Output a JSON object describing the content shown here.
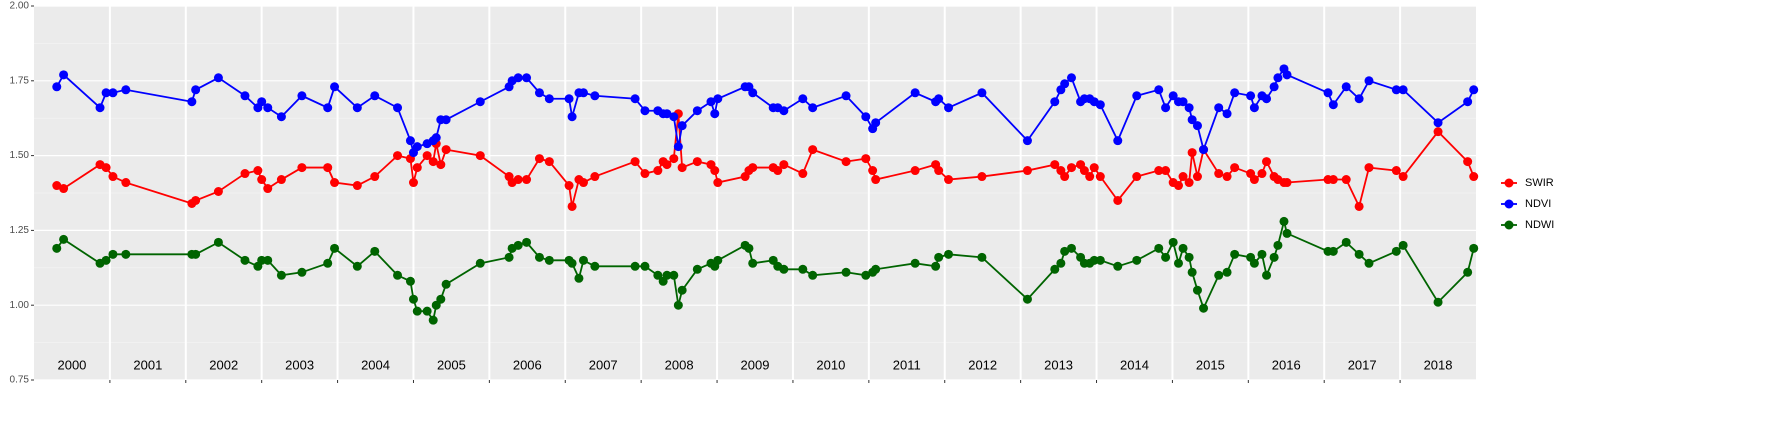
{
  "chart_data": {
    "type": "line",
    "x": [
      2000.3,
      2000.39,
      2000.87,
      2000.95,
      2001.04,
      2001.21,
      2002.08,
      2002.13,
      2002.43,
      2002.78,
      2002.95,
      2003.0,
      2003.08,
      2003.26,
      2003.53,
      2003.87,
      2003.96,
      2004.26,
      2004.49,
      2004.79,
      2004.96,
      2005.0,
      2005.05,
      2005.18,
      2005.26,
      2005.3,
      2005.36,
      2005.43,
      2005.88,
      2006.26,
      2006.3,
      2006.38,
      2006.49,
      2006.66,
      2006.79,
      2007.05,
      2007.09,
      2007.18,
      2007.24,
      2007.39,
      2007.92,
      2008.05,
      2008.22,
      2008.29,
      2008.34,
      2008.43,
      2008.49,
      2008.54,
      2008.74,
      2008.92,
      2008.97,
      2009.01,
      2009.37,
      2009.42,
      2009.47,
      2009.74,
      2009.8,
      2009.88,
      2010.13,
      2010.26,
      2010.7,
      2010.96,
      2011.05,
      2011.09,
      2011.61,
      2011.88,
      2011.92,
      2012.05,
      2012.49,
      2013.09,
      2013.45,
      2013.53,
      2013.58,
      2013.67,
      2013.79,
      2013.84,
      2013.91,
      2013.97,
      2014.05,
      2014.28,
      2014.53,
      2014.82,
      2014.91,
      2015.01,
      2015.08,
      2015.14,
      2015.22,
      2015.26,
      2015.33,
      2015.41,
      2015.61,
      2015.72,
      2015.82,
      2016.03,
      2016.08,
      2016.18,
      2016.24,
      2016.34,
      2016.39,
      2016.47,
      2016.51,
      2017.05,
      2017.12,
      2017.29,
      2017.46,
      2017.59,
      2017.95,
      2018.04,
      2018.5,
      2018.89,
      2018.97
    ],
    "series": [
      {
        "name": "SWIR",
        "color": "#ff0000",
        "values": [
          1.4,
          1.39,
          1.47,
          1.46,
          1.43,
          1.41,
          1.34,
          1.35,
          1.38,
          1.44,
          1.45,
          1.42,
          1.39,
          1.42,
          1.46,
          1.46,
          1.41,
          1.4,
          1.43,
          1.5,
          1.49,
          1.41,
          1.46,
          1.5,
          1.48,
          1.54,
          1.47,
          1.52,
          1.5,
          1.43,
          1.41,
          1.42,
          1.42,
          1.49,
          1.48,
          1.4,
          1.33,
          1.42,
          1.41,
          1.43,
          1.48,
          1.44,
          1.45,
          1.48,
          1.47,
          1.49,
          1.64,
          1.46,
          1.48,
          1.47,
          1.45,
          1.41,
          1.43,
          1.45,
          1.46,
          1.46,
          1.45,
          1.47,
          1.44,
          1.52,
          1.48,
          1.49,
          1.45,
          1.42,
          1.45,
          1.47,
          1.45,
          1.42,
          1.43,
          1.45,
          1.47,
          1.45,
          1.43,
          1.46,
          1.47,
          1.45,
          1.43,
          1.46,
          1.43,
          1.35,
          1.43,
          1.45,
          1.45,
          1.41,
          1.4,
          1.43,
          1.41,
          1.51,
          1.43,
          1.52,
          1.44,
          1.43,
          1.46,
          1.44,
          1.42,
          1.44,
          1.48,
          1.43,
          1.42,
          1.41,
          1.41,
          1.42,
          1.42,
          1.42,
          1.33,
          1.46,
          1.45,
          1.43,
          1.58,
          1.48,
          1.43
        ]
      },
      {
        "name": "NDVI",
        "color": "#0000ff",
        "values": [
          1.73,
          1.77,
          1.66,
          1.71,
          1.71,
          1.72,
          1.68,
          1.72,
          1.76,
          1.7,
          1.66,
          1.68,
          1.66,
          1.63,
          1.7,
          1.66,
          1.73,
          1.66,
          1.7,
          1.66,
          1.55,
          1.51,
          1.53,
          1.54,
          1.55,
          1.56,
          1.62,
          1.62,
          1.68,
          1.73,
          1.75,
          1.76,
          1.76,
          1.71,
          1.69,
          1.69,
          1.63,
          1.71,
          1.71,
          1.7,
          1.69,
          1.65,
          1.65,
          1.64,
          1.64,
          1.63,
          1.53,
          1.6,
          1.65,
          1.68,
          1.64,
          1.69,
          1.73,
          1.73,
          1.71,
          1.66,
          1.66,
          1.65,
          1.69,
          1.66,
          1.7,
          1.63,
          1.59,
          1.61,
          1.71,
          1.68,
          1.69,
          1.66,
          1.71,
          1.55,
          1.68,
          1.72,
          1.74,
          1.76,
          1.68,
          1.69,
          1.69,
          1.68,
          1.67,
          1.55,
          1.7,
          1.72,
          1.66,
          1.7,
          1.68,
          1.68,
          1.66,
          1.62,
          1.6,
          1.52,
          1.66,
          1.64,
          1.71,
          1.7,
          1.66,
          1.7,
          1.69,
          1.73,
          1.76,
          1.79,
          1.77,
          1.71,
          1.67,
          1.73,
          1.69,
          1.75,
          1.72,
          1.72,
          1.61,
          1.68,
          1.72
        ]
      },
      {
        "name": "NDWI",
        "color": "#006400",
        "values": [
          1.19,
          1.22,
          1.14,
          1.15,
          1.17,
          1.17,
          1.17,
          1.17,
          1.21,
          1.15,
          1.13,
          1.15,
          1.15,
          1.1,
          1.11,
          1.14,
          1.19,
          1.13,
          1.18,
          1.1,
          1.08,
          1.02,
          0.98,
          0.98,
          0.95,
          1.0,
          1.02,
          1.07,
          1.14,
          1.16,
          1.19,
          1.2,
          1.21,
          1.16,
          1.15,
          1.15,
          1.14,
          1.09,
          1.15,
          1.13,
          1.13,
          1.13,
          1.1,
          1.08,
          1.1,
          1.1,
          1.0,
          1.05,
          1.12,
          1.14,
          1.13,
          1.15,
          1.2,
          1.19,
          1.14,
          1.15,
          1.13,
          1.12,
          1.12,
          1.1,
          1.11,
          1.1,
          1.11,
          1.12,
          1.14,
          1.13,
          1.16,
          1.17,
          1.16,
          1.02,
          1.12,
          1.14,
          1.18,
          1.19,
          1.16,
          1.14,
          1.14,
          1.15,
          1.15,
          1.13,
          1.15,
          1.19,
          1.16,
          1.21,
          1.14,
          1.19,
          1.16,
          1.11,
          1.05,
          0.99,
          1.1,
          1.11,
          1.17,
          1.16,
          1.14,
          1.17,
          1.1,
          1.16,
          1.2,
          1.28,
          1.24,
          1.18,
          1.18,
          1.21,
          1.17,
          1.14,
          1.18,
          1.2,
          1.01,
          1.11,
          1.19
        ]
      }
    ],
    "xlim": [
      2000,
      2019
    ],
    "xticks": [
      {
        "value": 2000.5,
        "label": "2000"
      },
      {
        "value": 2001.5,
        "label": "2001"
      },
      {
        "value": 2002.5,
        "label": "2002"
      },
      {
        "value": 2003.5,
        "label": "2003"
      },
      {
        "value": 2004.5,
        "label": "2004"
      },
      {
        "value": 2005.5,
        "label": "2005"
      },
      {
        "value": 2006.5,
        "label": "2006"
      },
      {
        "value": 2007.5,
        "label": "2007"
      },
      {
        "value": 2008.5,
        "label": "2008"
      },
      {
        "value": 2009.5,
        "label": "2009"
      },
      {
        "value": 2010.5,
        "label": "2010"
      },
      {
        "value": 2011.5,
        "label": "2011"
      },
      {
        "value": 2012.5,
        "label": "2012"
      },
      {
        "value": 2013.5,
        "label": "2013"
      },
      {
        "value": 2014.5,
        "label": "2014"
      },
      {
        "value": 2015.5,
        "label": "2015"
      },
      {
        "value": 2016.5,
        "label": "2016"
      },
      {
        "value": 2017.5,
        "label": "2017"
      },
      {
        "value": 2018.5,
        "label": "2018"
      }
    ],
    "ylim": [
      0.75,
      2.0
    ],
    "yticks": [
      {
        "value": 0.75,
        "label": "0.75"
      },
      {
        "value": 1,
        "label": "1.00"
      },
      {
        "value": 1.25,
        "label": "1.25"
      },
      {
        "value": 1.5,
        "label": "1.50"
      },
      {
        "value": 1.75,
        "label": "1.75"
      },
      {
        "value": 2,
        "label": "2.00"
      }
    ],
    "grid": true,
    "legend": "right"
  }
}
